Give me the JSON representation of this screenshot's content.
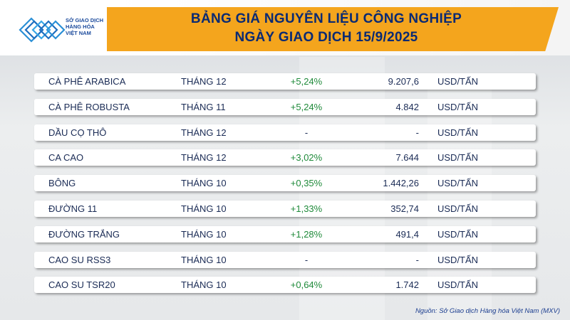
{
  "header": {
    "title_line1": "BẢNG GIÁ NGUYÊN LIỆU CÔNG NGHIỆP",
    "title_line2": "NGÀY GIAO DỊCH 15/9/2025",
    "logo_text_line1": "SỞ GIAO DỊCH",
    "logo_text_line2": "HÀNG HÓA",
    "logo_text_line3": "VIỆT NAM",
    "accent_color": "#f4a51d",
    "title_color": "#0a2a73"
  },
  "colors": {
    "positive": "#1f8a3a",
    "text": "#1a2b55"
  },
  "rows": [
    {
      "name": "CÀ PHÊ ARABICA",
      "month": "THÁNG 12",
      "change": "+5,24%",
      "price": "9.207,6",
      "unit": "USD/TẤN"
    },
    {
      "name": "CÀ PHÊ ROBUSTA",
      "month": "THÁNG 11",
      "change": "+5,24%",
      "price": "4.842",
      "unit": "USD/TẤN"
    },
    {
      "name": "DẦU CỌ THÔ",
      "month": "THÁNG 12",
      "change": "-",
      "price": "-",
      "unit": "USD/TẤN"
    },
    {
      "name": "CA CAO",
      "month": "THÁNG 12",
      "change": "+3,02%",
      "price": "7.644",
      "unit": "USD/TẤN"
    },
    {
      "name": "BÔNG",
      "month": "THÁNG 10",
      "change": "+0,35%",
      "price": "1.442,26",
      "unit": "USD/TẤN"
    },
    {
      "name": "ĐƯỜNG 11",
      "month": "THÁNG 10",
      "change": "+1,33%",
      "price": "352,74",
      "unit": "USD/TẤN"
    },
    {
      "name": "ĐƯỜNG TRẮNG",
      "month": "THÁNG 10",
      "change": "+1,28%",
      "price": "491,4",
      "unit": "USD/TẤN"
    },
    {
      "name": "CAO SU RSS3",
      "month": "THÁNG 10",
      "change": "-",
      "price": "-",
      "unit": "USD/TẤN"
    },
    {
      "name": "CAO SU TSR20",
      "month": "THÁNG 10",
      "change": "+0,64%",
      "price": "1.742",
      "unit": "USD/TẤN"
    }
  ],
  "footer": {
    "source": "Nguồn: Sở Giao dịch Hàng hóa Việt Nam (MXV)"
  }
}
